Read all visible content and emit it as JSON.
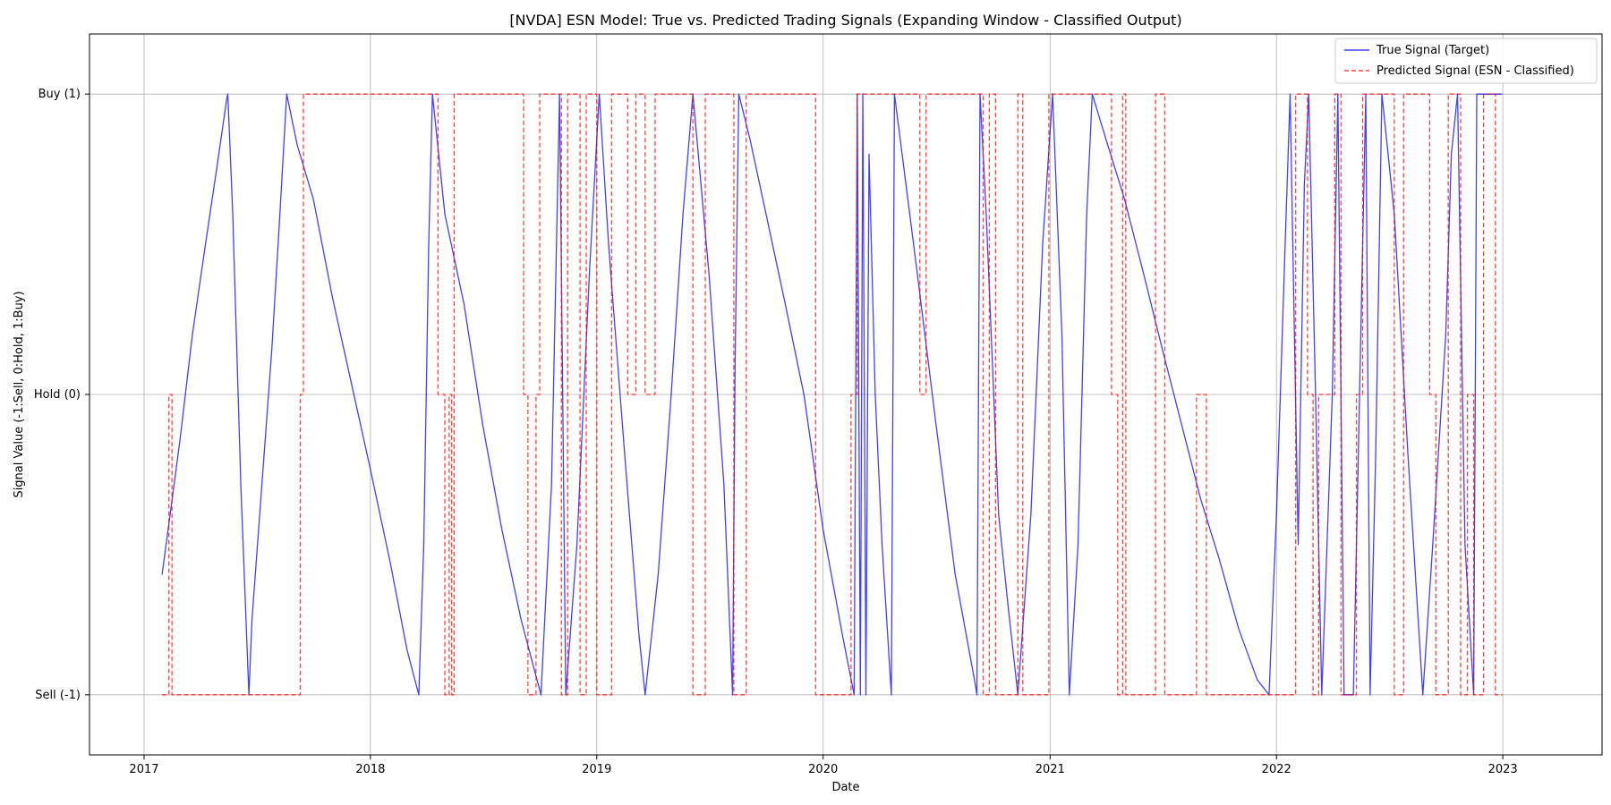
{
  "chart_data": {
    "type": "line",
    "title": "[NVDA] ESN Model: True vs. Predicted Trading Signals (Expanding Window - Classified Output)",
    "xlabel": "Date",
    "ylabel": "Signal Value (-1:Sell, 0:Hold, 1:Buy)",
    "xlim": [
      "2016-10-05",
      "2023-06-10"
    ],
    "ylim": [
      -1.2,
      1.2
    ],
    "x_ticks": [
      "2017",
      "2018",
      "2019",
      "2020",
      "2021",
      "2022",
      "2023"
    ],
    "x_tick_dates": [
      "2017-01-01",
      "2018-01-01",
      "2019-01-01",
      "2020-01-01",
      "2021-01-01",
      "2022-01-01",
      "2023-01-01"
    ],
    "y_ticks": [
      {
        "value": 1,
        "label": "Buy (1)"
      },
      {
        "value": 0,
        "label": "Hold (0)"
      },
      {
        "value": -1,
        "label": "Sell (-1)"
      }
    ],
    "grid": true,
    "legend_position": "top-right",
    "colors": {
      "true_signal": "#0000ff",
      "predicted_signal": "#ff0000"
    },
    "series": [
      {
        "name": "True Signal (Target)",
        "style": "solid",
        "points": [
          [
            "2017-01-30",
            -0.6
          ],
          [
            "2017-02-12",
            -0.4
          ],
          [
            "2017-02-28",
            -0.15
          ],
          [
            "2017-03-20",
            0.2
          ],
          [
            "2017-04-10",
            0.5
          ],
          [
            "2017-04-28",
            0.75
          ],
          [
            "2017-05-14",
            0.98
          ],
          [
            "2017-05-16",
            1.0
          ],
          [
            "2017-05-24",
            0.6
          ],
          [
            "2017-06-06",
            -0.3
          ],
          [
            "2017-06-19",
            -1.0
          ],
          [
            "2017-06-24",
            -0.75
          ],
          [
            "2017-07-10",
            -0.3
          ],
          [
            "2017-07-26",
            0.15
          ],
          [
            "2017-08-08",
            0.6
          ],
          [
            "2017-08-19",
            1.0
          ],
          [
            "2017-09-05",
            0.83
          ],
          [
            "2017-10-01",
            0.65
          ],
          [
            "2017-11-01",
            0.32
          ],
          [
            "2017-12-01",
            0.04
          ],
          [
            "2018-01-01",
            -0.25
          ],
          [
            "2018-02-01",
            -0.55
          ],
          [
            "2018-03-01",
            -0.85
          ],
          [
            "2018-03-20",
            -1.0
          ],
          [
            "2018-03-28",
            -0.5
          ],
          [
            "2018-04-05",
            0.5
          ],
          [
            "2018-04-11",
            1.0
          ],
          [
            "2018-05-01",
            0.6
          ],
          [
            "2018-06-01",
            0.3
          ],
          [
            "2018-07-01",
            -0.1
          ],
          [
            "2018-08-01",
            -0.45
          ],
          [
            "2018-09-01",
            -0.75
          ],
          [
            "2018-10-03",
            -1.0
          ],
          [
            "2018-10-20",
            -0.3
          ],
          [
            "2018-11-02",
            1.0
          ],
          [
            "2018-11-12",
            -1.0
          ],
          [
            "2018-11-30",
            -0.5
          ],
          [
            "2018-12-20",
            0.4
          ],
          [
            "2019-01-05",
            1.0
          ],
          [
            "2019-01-20",
            0.5
          ],
          [
            "2019-02-15",
            -0.2
          ],
          [
            "2019-03-10",
            -0.8
          ],
          [
            "2019-03-20",
            -1.0
          ],
          [
            "2019-04-10",
            -0.6
          ],
          [
            "2019-05-01",
            0.0
          ],
          [
            "2019-05-20",
            0.6
          ],
          [
            "2019-06-05",
            1.0
          ],
          [
            "2019-07-01",
            0.4
          ],
          [
            "2019-07-25",
            -0.3
          ],
          [
            "2019-08-08",
            -1.0
          ],
          [
            "2019-08-12",
            0.1
          ],
          [
            "2019-08-18",
            1.0
          ],
          [
            "2019-09-05",
            0.85
          ],
          [
            "2019-10-01",
            0.6
          ],
          [
            "2019-11-01",
            0.3
          ],
          [
            "2019-12-01",
            0.0
          ],
          [
            "2020-01-01",
            -0.45
          ],
          [
            "2020-02-01",
            -0.8
          ],
          [
            "2020-02-20",
            -1.0
          ],
          [
            "2020-02-25",
            1.0
          ],
          [
            "2020-03-01",
            -1.0
          ],
          [
            "2020-03-05",
            1.0
          ],
          [
            "2020-03-10",
            -1.0
          ],
          [
            "2020-03-15",
            0.8
          ],
          [
            "2020-03-25",
            0.0
          ],
          [
            "2020-04-05",
            -0.5
          ],
          [
            "2020-04-20",
            -1.0
          ],
          [
            "2020-04-25",
            1.0
          ],
          [
            "2020-06-01",
            0.4
          ],
          [
            "2020-07-01",
            -0.1
          ],
          [
            "2020-08-01",
            -0.6
          ],
          [
            "2020-09-01",
            -0.95
          ],
          [
            "2020-09-05",
            -1.0
          ],
          [
            "2020-09-10",
            1.0
          ],
          [
            "2020-09-20",
            0.6
          ],
          [
            "2020-10-10",
            -0.4
          ],
          [
            "2020-10-25",
            -0.7
          ],
          [
            "2020-11-10",
            -1.0
          ],
          [
            "2020-12-01",
            -0.4
          ],
          [
            "2020-12-20",
            0.5
          ],
          [
            "2021-01-05",
            1.0
          ],
          [
            "2021-01-20",
            0.2
          ],
          [
            "2021-02-01",
            -1.0
          ],
          [
            "2021-02-15",
            -0.5
          ],
          [
            "2021-03-01",
            0.6
          ],
          [
            "2021-03-10",
            1.0
          ],
          [
            "2021-04-01",
            0.85
          ],
          [
            "2021-05-01",
            0.65
          ],
          [
            "2021-06-01",
            0.4
          ],
          [
            "2021-07-01",
            0.15
          ],
          [
            "2021-08-01",
            -0.1
          ],
          [
            "2021-09-01",
            -0.35
          ],
          [
            "2021-10-01",
            -0.55
          ],
          [
            "2021-11-01",
            -0.78
          ],
          [
            "2021-12-01",
            -0.95
          ],
          [
            "2021-12-20",
            -1.0
          ],
          [
            "2022-01-01",
            -0.4
          ],
          [
            "2022-01-15",
            0.5
          ],
          [
            "2022-01-23",
            1.0
          ],
          [
            "2022-02-05",
            -0.5
          ],
          [
            "2022-02-15",
            0.7
          ],
          [
            "2022-02-22",
            1.0
          ],
          [
            "2022-03-05",
            0.0
          ],
          [
            "2022-03-15",
            -1.0
          ],
          [
            "2022-04-01",
            0.0
          ],
          [
            "2022-04-10",
            1.0
          ],
          [
            "2022-04-20",
            -1.0
          ],
          [
            "2022-05-05",
            -1.0
          ],
          [
            "2022-05-15",
            0.0
          ],
          [
            "2022-05-25",
            1.0
          ],
          [
            "2022-06-01",
            -1.0
          ],
          [
            "2022-06-10",
            -0.2
          ],
          [
            "2022-06-20",
            1.0
          ],
          [
            "2022-07-10",
            0.6
          ],
          [
            "2022-08-01",
            -0.2
          ],
          [
            "2022-08-25",
            -1.0
          ],
          [
            "2022-09-10",
            -0.5
          ],
          [
            "2022-10-01",
            0.2
          ],
          [
            "2022-10-10",
            0.8
          ],
          [
            "2022-10-20",
            1.0
          ],
          [
            "2022-11-01",
            -0.5
          ],
          [
            "2022-11-15",
            -1.0
          ],
          [
            "2022-11-20",
            1.0
          ],
          [
            "2022-12-31",
            1.0
          ]
        ]
      },
      {
        "name": "Predicted Signal (ESN - Classified)",
        "style": "dashed",
        "points": [
          [
            "2017-01-30",
            -1
          ],
          [
            "2017-02-10",
            -1
          ],
          [
            "2017-02-10",
            0
          ],
          [
            "2017-02-15",
            0
          ],
          [
            "2017-02-15",
            -1
          ],
          [
            "2017-09-10",
            -1
          ],
          [
            "2017-09-10",
            0
          ],
          [
            "2017-09-15",
            0
          ],
          [
            "2017-09-15",
            1
          ],
          [
            "2018-04-20",
            1
          ],
          [
            "2018-04-20",
            0
          ],
          [
            "2018-05-01",
            0
          ],
          [
            "2018-05-01",
            -1
          ],
          [
            "2018-05-08",
            -1
          ],
          [
            "2018-05-08",
            0
          ],
          [
            "2018-05-12",
            0
          ],
          [
            "2018-05-12",
            -1
          ],
          [
            "2018-05-16",
            -1
          ],
          [
            "2018-05-16",
            1
          ],
          [
            "2018-09-05",
            1
          ],
          [
            "2018-09-05",
            0
          ],
          [
            "2018-09-12",
            0
          ],
          [
            "2018-09-12",
            -1
          ],
          [
            "2018-09-25",
            -1
          ],
          [
            "2018-09-25",
            0
          ],
          [
            "2018-10-01",
            0
          ],
          [
            "2018-10-01",
            1
          ],
          [
            "2018-11-05",
            1
          ],
          [
            "2018-11-05",
            -1
          ],
          [
            "2018-11-15",
            -1
          ],
          [
            "2018-11-15",
            1
          ],
          [
            "2018-12-05",
            1
          ],
          [
            "2018-12-05",
            -1
          ],
          [
            "2018-12-15",
            -1
          ],
          [
            "2018-12-15",
            1
          ],
          [
            "2019-01-01",
            1
          ],
          [
            "2019-01-01",
            -1
          ],
          [
            "2019-01-25",
            -1
          ],
          [
            "2019-01-25",
            1
          ],
          [
            "2019-02-20",
            1
          ],
          [
            "2019-02-20",
            0
          ],
          [
            "2019-03-05",
            0
          ],
          [
            "2019-03-05",
            1
          ],
          [
            "2019-03-20",
            1
          ],
          [
            "2019-03-20",
            0
          ],
          [
            "2019-04-05",
            0
          ],
          [
            "2019-04-05",
            1
          ],
          [
            "2019-06-05",
            1
          ],
          [
            "2019-06-05",
            -1
          ],
          [
            "2019-06-25",
            -1
          ],
          [
            "2019-06-25",
            1
          ],
          [
            "2019-08-10",
            1
          ],
          [
            "2019-08-10",
            -1
          ],
          [
            "2019-08-30",
            -1
          ],
          [
            "2019-08-30",
            1
          ],
          [
            "2019-12-20",
            1
          ],
          [
            "2019-12-20",
            -1
          ],
          [
            "2020-02-15",
            -1
          ],
          [
            "2020-02-15",
            0
          ],
          [
            "2020-02-25",
            0
          ],
          [
            "2020-02-25",
            1
          ],
          [
            "2020-06-05",
            1
          ],
          [
            "2020-06-05",
            0
          ],
          [
            "2020-06-15",
            0
          ],
          [
            "2020-06-15",
            1
          ],
          [
            "2020-09-15",
            1
          ],
          [
            "2020-09-15",
            -1
          ],
          [
            "2020-09-25",
            -1
          ],
          [
            "2020-09-25",
            1
          ],
          [
            "2020-10-05",
            1
          ],
          [
            "2020-10-05",
            -1
          ],
          [
            "2020-11-10",
            -1
          ],
          [
            "2020-11-10",
            1
          ],
          [
            "2020-11-18",
            1
          ],
          [
            "2020-11-18",
            -1
          ],
          [
            "2020-12-30",
            -1
          ],
          [
            "2020-12-30",
            1
          ],
          [
            "2021-04-10",
            1
          ],
          [
            "2021-04-10",
            0
          ],
          [
            "2021-04-20",
            0
          ],
          [
            "2021-04-20",
            -1
          ],
          [
            "2021-04-28",
            -1
          ],
          [
            "2021-04-28",
            1
          ],
          [
            "2021-05-03",
            1
          ],
          [
            "2021-05-03",
            -1
          ],
          [
            "2021-06-20",
            -1
          ],
          [
            "2021-06-20",
            1
          ],
          [
            "2021-07-05",
            1
          ],
          [
            "2021-07-05",
            -1
          ],
          [
            "2021-08-25",
            -1
          ],
          [
            "2021-08-25",
            0
          ],
          [
            "2021-09-10",
            0
          ],
          [
            "2021-09-10",
            -1
          ],
          [
            "2022-02-01",
            -1
          ],
          [
            "2022-02-01",
            1
          ],
          [
            "2022-02-20",
            1
          ],
          [
            "2022-02-20",
            0
          ],
          [
            "2022-03-01",
            0
          ],
          [
            "2022-03-01",
            -1
          ],
          [
            "2022-03-10",
            -1
          ],
          [
            "2022-03-10",
            0
          ],
          [
            "2022-04-05",
            0
          ],
          [
            "2022-04-05",
            1
          ],
          [
            "2022-04-15",
            1
          ],
          [
            "2022-04-15",
            -1
          ],
          [
            "2022-05-10",
            -1
          ],
          [
            "2022-05-10",
            0
          ],
          [
            "2022-05-20",
            0
          ],
          [
            "2022-05-20",
            1
          ],
          [
            "2022-07-10",
            1
          ],
          [
            "2022-07-10",
            -1
          ],
          [
            "2022-07-25",
            -1
          ],
          [
            "2022-07-25",
            1
          ],
          [
            "2022-09-05",
            1
          ],
          [
            "2022-09-05",
            0
          ],
          [
            "2022-09-15",
            0
          ],
          [
            "2022-09-15",
            -1
          ],
          [
            "2022-10-05",
            -1
          ],
          [
            "2022-10-05",
            1
          ],
          [
            "2022-10-25",
            1
          ],
          [
            "2022-10-25",
            -1
          ],
          [
            "2022-11-05",
            -1
          ],
          [
            "2022-11-05",
            0
          ],
          [
            "2022-11-15",
            0
          ],
          [
            "2022-11-15",
            -1
          ],
          [
            "2022-12-01",
            -1
          ],
          [
            "2022-12-01",
            1
          ],
          [
            "2022-12-20",
            1
          ],
          [
            "2022-12-20",
            -1
          ],
          [
            "2022-12-31",
            -1
          ]
        ]
      }
    ]
  }
}
